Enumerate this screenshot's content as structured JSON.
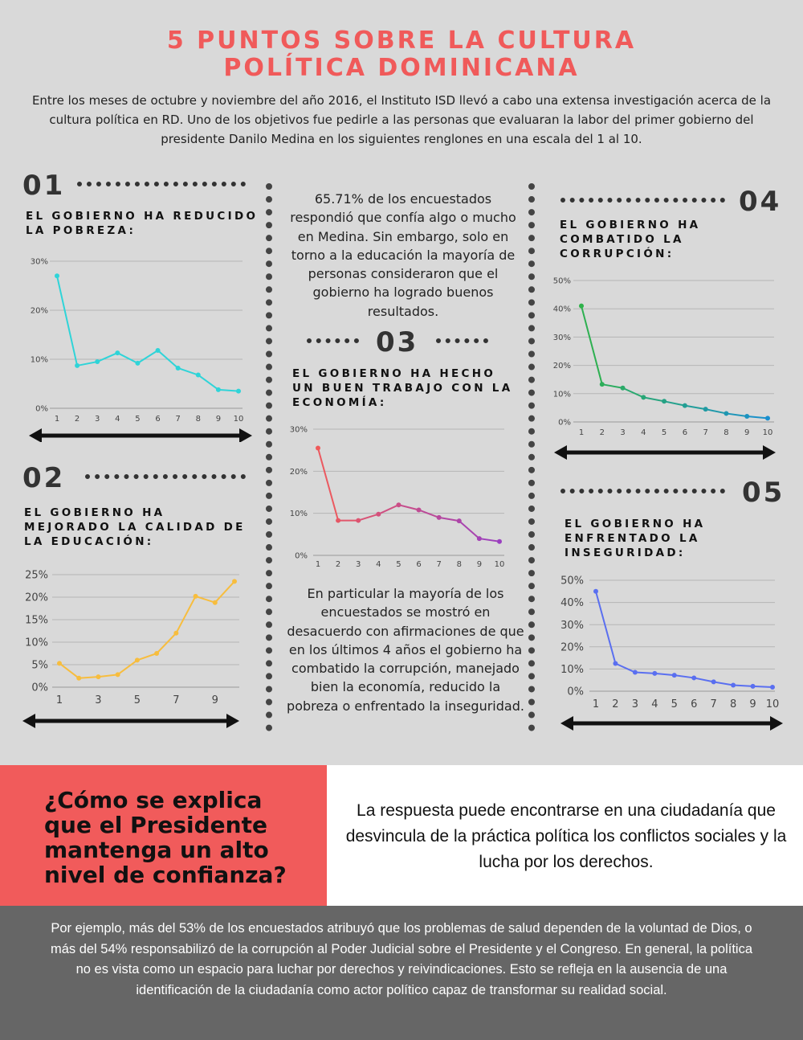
{
  "title_line1": "5 PUNTOS SOBRE LA CULTURA",
  "title_line2": "POLÍTICA DOMINICANA",
  "intro": "Entre los meses de octubre y noviembre del año 2016, el Instituto ISD llevó a cabo una extensa investigación acerca de la cultura política en RD. Uno de los objetivos fue pedirle a las personas que evaluaran la labor del primer gobierno del presidente Danilo Medina en los siguientes renglones en una escala del 1 al 10.",
  "points": [
    {
      "number": "01",
      "heading": "EL GOBIERNO HA REDUCIDO LA POBREZA:"
    },
    {
      "number": "02",
      "heading": "EL GOBIERNO HA MEJORADO LA CALIDAD DE LA EDUCACIÓN:"
    },
    {
      "number": "03",
      "heading": "EL GOBIERNO HA HECHO UN BUEN TRABAJO CON LA ECONOMÍA:"
    },
    {
      "number": "04",
      "heading": "EL GOBIERNO HA COMBATIDO LA CORRUPCIÓN:"
    },
    {
      "number": "05",
      "heading": "EL GOBIERNO HA ENFRENTADO LA INSEGURIDAD:"
    }
  ],
  "middle_top_text": "65.71% de los encuestados respondió que confía algo o mucho en Medina. Sin embargo, solo en torno a la educación la mayoría de personas consideraron que el gobierno ha logrado buenos resultados.",
  "middle_bottom_text": "En particular la mayoría de los encuestados se mostró en desacuerdo con afirmaciones de que en los últimos 4 años el gobierno ha combatido la corrupción, manejado bien la economía, reducido la pobreza o enfrentado la inseguridad.",
  "question": "¿Cómo se explica que el Presidente mantenga un alto nivel de confianza?",
  "answer": "La respuesta puede encontrarse en una ciudadanía que desvincula de la práctica política los conflictos sociales y la lucha por los derechos.",
  "footer": "Por ejemplo, más del 53% de los encuestados atribuyó que los problemas de salud dependen de la voluntad de Dios, o más del 54% responsabilizó de la corrupción al Poder Judicial sobre el Presidente y el Congreso. En general, la política no es vista como un espacio para luchar por derechos y reivindicaciones. Esto se refleja en la ausencia de una identificación de la ciudadanía como actor político capaz de transformar su realidad social.",
  "chart_data": [
    {
      "type": "line",
      "id": "pobreza",
      "color": "#2fd4d8",
      "x": [
        1,
        2,
        3,
        4,
        5,
        6,
        7,
        8,
        9,
        10
      ],
      "values": [
        27.0,
        8.7,
        9.5,
        11.3,
        9.2,
        11.8,
        8.2,
        6.8,
        3.8,
        3.5
      ],
      "ylim": [
        0,
        30
      ],
      "yticks": [
        0,
        10,
        20,
        30
      ],
      "ytick_labels": [
        "0%",
        "10%",
        "20%",
        "30%"
      ],
      "xtick_labels": [
        "1",
        "2",
        "3",
        "4",
        "5",
        "6",
        "7",
        "8",
        "9",
        "10"
      ],
      "grid": true
    },
    {
      "type": "line",
      "id": "educacion",
      "color": "#f7bd3e",
      "x": [
        1,
        2,
        3,
        4,
        5,
        6,
        7,
        8,
        9,
        10
      ],
      "values": [
        5.3,
        2.0,
        2.3,
        2.8,
        6.0,
        7.5,
        12.0,
        20.2,
        18.8,
        23.5
      ],
      "ylim": [
        0,
        25
      ],
      "yticks": [
        0,
        5,
        10,
        15,
        20,
        25
      ],
      "ytick_labels": [
        "0%",
        "5%",
        "10%",
        "15%",
        "20%",
        "25%"
      ],
      "xtick_labels": [
        "1",
        "3",
        "5",
        "7",
        "9"
      ],
      "xtick_positions": [
        1,
        3,
        5,
        7,
        9
      ],
      "grid": true
    },
    {
      "type": "line",
      "id": "economia",
      "color_start": "#f05a5a",
      "color_end": "#9a3fc0",
      "x": [
        1,
        2,
        3,
        4,
        5,
        6,
        7,
        8,
        9,
        10
      ],
      "values": [
        25.5,
        8.3,
        8.3,
        9.8,
        12.0,
        10.8,
        9.0,
        8.2,
        4.0,
        3.3
      ],
      "ylim": [
        0,
        30
      ],
      "yticks": [
        0,
        10,
        20,
        30
      ],
      "ytick_labels": [
        "0%",
        "10%",
        "20%",
        "30%"
      ],
      "xtick_labels": [
        "1",
        "2",
        "3",
        "4",
        "5",
        "6",
        "7",
        "8",
        "9",
        "10"
      ],
      "grid": true
    },
    {
      "type": "line",
      "id": "corrupcion",
      "color_start": "#2fb24a",
      "color_end": "#1a8fcf",
      "x": [
        1,
        2,
        3,
        4,
        5,
        6,
        7,
        8,
        9,
        10
      ],
      "values": [
        41.0,
        13.3,
        12.0,
        8.7,
        7.3,
        5.8,
        4.5,
        3.0,
        2.0,
        1.3
      ],
      "ylim": [
        0,
        50
      ],
      "yticks": [
        0,
        10,
        20,
        30,
        40,
        50
      ],
      "ytick_labels": [
        "0%",
        "10%",
        "20%",
        "30%",
        "40%",
        "50%"
      ],
      "xtick_labels": [
        "1",
        "2",
        "3",
        "4",
        "5",
        "6",
        "7",
        "8",
        "9",
        "10"
      ],
      "grid": true
    },
    {
      "type": "line",
      "id": "inseguridad",
      "color": "#5a6ff0",
      "x": [
        1,
        2,
        3,
        4,
        5,
        6,
        7,
        8,
        9,
        10
      ],
      "values": [
        45.0,
        12.5,
        8.5,
        8.0,
        7.2,
        6.0,
        4.2,
        2.7,
        2.2,
        1.8
      ],
      "ylim": [
        0,
        50
      ],
      "yticks": [
        0,
        10,
        20,
        30,
        40,
        50
      ],
      "ytick_labels": [
        "0%",
        "10%",
        "20%",
        "30%",
        "40%",
        "50%"
      ],
      "xtick_labels": [
        "1",
        "2",
        "3",
        "4",
        "5",
        "6",
        "7",
        "8",
        "9",
        "10"
      ],
      "grid": true
    }
  ]
}
